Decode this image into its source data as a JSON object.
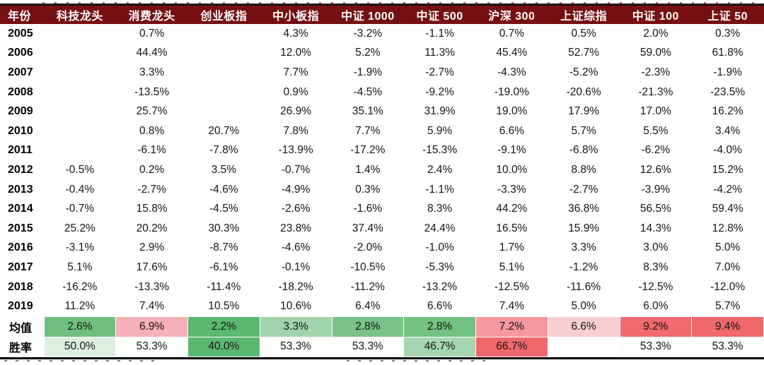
{
  "table": {
    "columns": [
      "年份",
      "科技龙头",
      "消费龙头",
      "创业板指",
      "中小板指",
      "中证 1000",
      "中证 500",
      "沪深 300",
      "上证综指",
      "中证 100",
      "上证 50"
    ],
    "rows": [
      {
        "label": "2005",
        "values": [
          "",
          "0.7%",
          "",
          "4.3%",
          "-3.2%",
          "-1.1%",
          "0.7%",
          "0.5%",
          "2.0%",
          "0.3%"
        ]
      },
      {
        "label": "2006",
        "values": [
          "",
          "44.4%",
          "",
          "12.0%",
          "5.2%",
          "11.3%",
          "45.4%",
          "52.7%",
          "59.0%",
          "61.8%"
        ]
      },
      {
        "label": "2007",
        "values": [
          "",
          "3.3%",
          "",
          "7.7%",
          "-1.9%",
          "-2.7%",
          "-4.3%",
          "-5.2%",
          "-2.3%",
          "-1.9%"
        ]
      },
      {
        "label": "2008",
        "values": [
          "",
          "-13.5%",
          "",
          "0.9%",
          "-4.5%",
          "-9.2%",
          "-19.0%",
          "-20.6%",
          "-21.3%",
          "-23.5%"
        ]
      },
      {
        "label": "2009",
        "values": [
          "",
          "25.7%",
          "",
          "26.9%",
          "35.1%",
          "31.9%",
          "19.0%",
          "17.9%",
          "17.0%",
          "16.2%"
        ]
      },
      {
        "label": "2010",
        "values": [
          "",
          "0.8%",
          "20.7%",
          "7.8%",
          "7.7%",
          "5.9%",
          "6.6%",
          "5.7%",
          "5.5%",
          "3.4%"
        ]
      },
      {
        "label": "2011",
        "values": [
          "",
          "-6.1%",
          "-7.8%",
          "-13.9%",
          "-17.2%",
          "-15.3%",
          "-9.1%",
          "-6.8%",
          "-6.2%",
          "-4.0%"
        ]
      },
      {
        "label": "2012",
        "values": [
          "-0.5%",
          "0.2%",
          "3.5%",
          "-0.7%",
          "1.4%",
          "2.4%",
          "10.0%",
          "8.8%",
          "12.6%",
          "15.2%"
        ]
      },
      {
        "label": "2013",
        "values": [
          "-0.4%",
          "-2.7%",
          "-4.6%",
          "-4.9%",
          "0.3%",
          "-1.1%",
          "-3.3%",
          "-2.7%",
          "-3.9%",
          "-4.2%"
        ]
      },
      {
        "label": "2014",
        "values": [
          "-0.7%",
          "15.8%",
          "-4.5%",
          "-2.6%",
          "-1.6%",
          "8.3%",
          "44.2%",
          "36.8%",
          "56.5%",
          "59.4%"
        ]
      },
      {
        "label": "2015",
        "values": [
          "25.2%",
          "20.2%",
          "30.3%",
          "23.8%",
          "37.4%",
          "24.4%",
          "16.5%",
          "15.9%",
          "14.3%",
          "12.8%"
        ]
      },
      {
        "label": "2016",
        "values": [
          "-3.1%",
          "2.9%",
          "-8.7%",
          "-4.6%",
          "-2.0%",
          "-1.0%",
          "1.7%",
          "3.3%",
          "3.0%",
          "5.0%"
        ]
      },
      {
        "label": "2017",
        "values": [
          "5.1%",
          "17.6%",
          "-6.1%",
          "-0.1%",
          "-10.5%",
          "-5.3%",
          "5.1%",
          "-1.2%",
          "8.3%",
          "7.0%"
        ]
      },
      {
        "label": "2018",
        "values": [
          "-16.2%",
          "-13.3%",
          "-11.4%",
          "-18.2%",
          "-11.2%",
          "-13.2%",
          "-12.5%",
          "-11.6%",
          "-12.5%",
          "-12.0%"
        ]
      },
      {
        "label": "2019",
        "values": [
          "11.2%",
          "7.4%",
          "10.5%",
          "10.6%",
          "6.4%",
          "6.6%",
          "7.4%",
          "5.0%",
          "6.0%",
          "5.7%"
        ]
      }
    ],
    "summary_rows": [
      {
        "label": "均值",
        "cells": [
          {
            "text": "2.6%",
            "bg": "#6fbf80"
          },
          {
            "text": "6.9%",
            "bg": "#f5b1b5"
          },
          {
            "text": "2.2%",
            "bg": "#5bb871"
          },
          {
            "text": "3.3%",
            "bg": "#a2d4ab"
          },
          {
            "text": "2.8%",
            "bg": "#79c389"
          },
          {
            "text": "2.8%",
            "bg": "#73c183"
          },
          {
            "text": "7.2%",
            "bg": "#f4999e"
          },
          {
            "text": "6.6%",
            "bg": "#f8cfd1"
          },
          {
            "text": "9.2%",
            "bg": "#f16a6f"
          },
          {
            "text": "9.4%",
            "bg": "#f0676c"
          }
        ]
      },
      {
        "label": "胜率",
        "cells": [
          {
            "text": "50.0%",
            "bg": "#ddefe1"
          },
          {
            "text": "53.3%",
            "bg": "#fbfdfb"
          },
          {
            "text": "40.0%",
            "bg": "#5bb871"
          },
          {
            "text": "53.3%",
            "bg": "#fbfdfb"
          },
          {
            "text": "53.3%",
            "bg": "#fbfdfb"
          },
          {
            "text": "46.7%",
            "bg": "#a6d6b0"
          },
          {
            "text": "66.7%",
            "bg": "#f0676c"
          },
          {
            "text": "",
            "bg": "#ffffff"
          },
          {
            "text": "53.3%",
            "bg": "#fbfdfb"
          },
          {
            "text": "53.3%",
            "bg": "#fbfdfb"
          }
        ]
      }
    ]
  },
  "colors": {
    "header_bg": "#760f11",
    "header_text": "#ffffff",
    "top_rule": "#161616",
    "bottom_rule": "#000000",
    "positive_strong_green": "#5bb871",
    "negative_strong_red": "#f0676c"
  }
}
